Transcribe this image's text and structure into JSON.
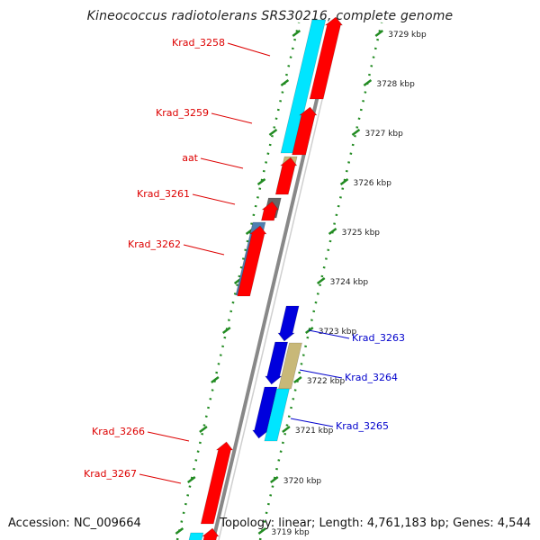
{
  "title": "Kineococcus radiotolerans SRS30216, complete genome",
  "footer": {
    "accession": "Accession: NC_009664",
    "summary": "Topology: linear; Length: 4,761,183 bp; Genes: 4,544"
  },
  "colors": {
    "forward_red": "#ff0000",
    "blue": "#0000dd",
    "cyan": "#00e5ff",
    "khaki": "#c8b878",
    "gray": "#666666",
    "steel": "#4f7fb0",
    "ruler_green": "#228b22",
    "backbone": "#888888",
    "label_red": "#dd0000",
    "label_blue": "#0000cc"
  },
  "ruler": {
    "ticks": [
      "3729 kbp",
      "3728 kbp",
      "3727 kbp",
      "3726 kbp",
      "3725 kbp",
      "3724 kbp",
      "3723 kbp",
      "3722 kbp",
      "3721 kbp",
      "3720 kbp",
      "3719 kbp"
    ]
  },
  "labels": {
    "left": [
      "Krad_3258",
      "Krad_3259",
      "aat",
      "Krad_3261",
      "Krad_3262",
      "Krad_3266",
      "Krad_3267"
    ],
    "right": [
      "Krad_3263",
      "Krad_3264",
      "Krad_3265"
    ]
  }
}
